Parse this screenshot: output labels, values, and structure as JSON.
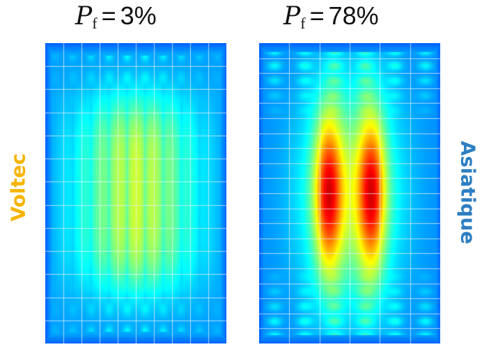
{
  "titles": {
    "left": {
      "symbol": "P",
      "subscript": "f",
      "value": "3%"
    },
    "right": {
      "symbol": "P",
      "subscript": "f",
      "value": "78%"
    }
  },
  "side_labels": {
    "left": {
      "text": "Voltec",
      "color": "#f5b400"
    },
    "right": {
      "text": "Asiatique",
      "color": "#2e7fc1"
    }
  },
  "colormap": "jet",
  "panels": {
    "left": {
      "peak_level": 0.58,
      "columns": 10,
      "rows": 13
    },
    "right": {
      "peak_level": 0.95,
      "columns": 6,
      "rows": 20
    }
  }
}
